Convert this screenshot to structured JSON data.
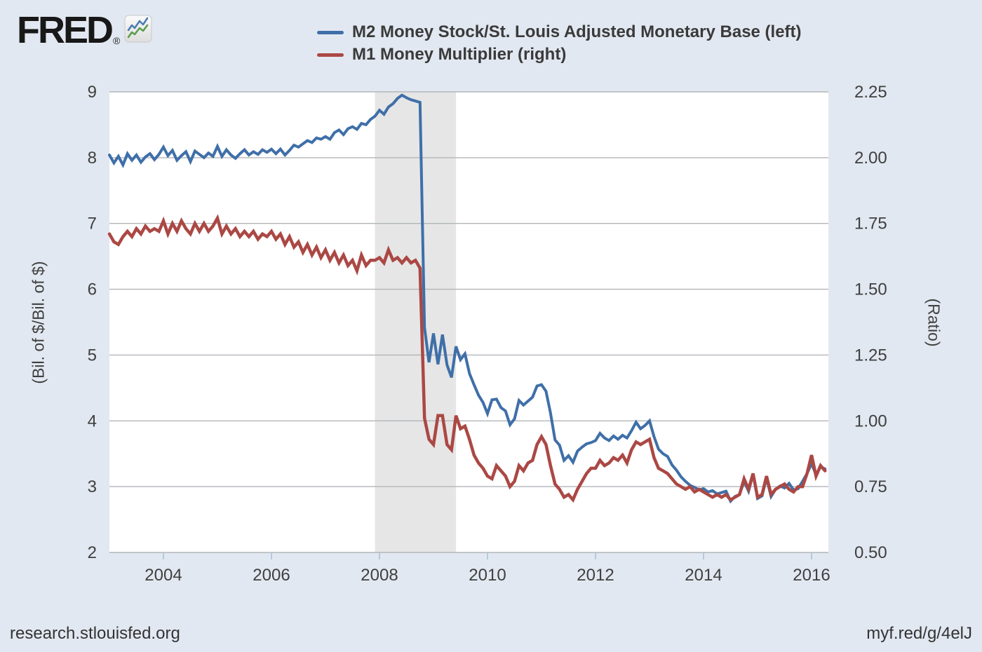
{
  "header": {
    "logo_text": "FRED",
    "logo_reg": "®"
  },
  "legend": {
    "series": [
      {
        "label": "M2 Money Stock/St. Louis Adjusted Monetary Base (left)",
        "color": "#3f6fa8"
      },
      {
        "label": "M1 Money Multiplier (right)",
        "color": "#ab4844"
      }
    ]
  },
  "footer": {
    "left": "research.stlouisfed.org",
    "right": "myf.red/g/4elJ"
  },
  "colors": {
    "background": "#e2e8f1",
    "plot_background": "#ffffff",
    "gridline": "#b2b5b9",
    "recession_band": "#e6e6e6",
    "tick_mark": "#b6c9dc",
    "axis_text": "#3f3f3f",
    "m2_line": "#3f6fa8",
    "m1_line": "#ab4844"
  },
  "chart_data": {
    "type": "line",
    "title": "",
    "frequency": "monthly",
    "x_start_year": 2003.0,
    "x_end_year": 2016.25,
    "x_axis": {
      "tick_years": [
        2004,
        2006,
        2008,
        2010,
        2012,
        2014,
        2016
      ]
    },
    "y_axis_left": {
      "title": "(Bil. of $/Bil. of $)",
      "range": [
        2,
        9
      ],
      "ticks": [
        9,
        8,
        7,
        6,
        5,
        4,
        3,
        2
      ]
    },
    "y_axis_right": {
      "title": "(Ratio)",
      "range": [
        0.5,
        2.25
      ],
      "ticks": [
        "2.25",
        "2.00",
        "1.75",
        "1.50",
        "1.25",
        "1.00",
        "0.75",
        "0.50"
      ]
    },
    "recession_band": {
      "label": "US recession 2007-12 to 2009-06",
      "start": "2007-12",
      "end": "2009-06",
      "start_year_frac": 2007.917,
      "end_year_frac": 2009.417,
      "color": "#e6e6e6"
    },
    "series": [
      {
        "name": "M2 Money Stock/St. Louis Adjusted Monetary Base",
        "axis": "left",
        "color": "#3f6fa8",
        "data_name": "m2-line",
        "values": [
          8.04,
          7.92,
          8.02,
          7.89,
          8.06,
          7.96,
          8.04,
          7.93,
          8.01,
          8.06,
          7.97,
          8.05,
          8.16,
          8.03,
          8.11,
          7.96,
          8.03,
          8.09,
          7.94,
          8.1,
          8.05,
          8.0,
          8.07,
          8.02,
          8.17,
          8.02,
          8.12,
          8.04,
          7.99,
          8.06,
          8.12,
          8.04,
          8.09,
          8.05,
          8.12,
          8.08,
          8.13,
          8.06,
          8.13,
          8.04,
          8.11,
          8.19,
          8.16,
          8.21,
          8.26,
          8.23,
          8.3,
          8.28,
          8.32,
          8.28,
          8.38,
          8.42,
          8.35,
          8.44,
          8.47,
          8.43,
          8.52,
          8.5,
          8.58,
          8.63,
          8.72,
          8.66,
          8.77,
          8.82,
          8.9,
          8.95,
          8.91,
          8.88,
          8.86,
          8.84,
          5.42,
          4.89,
          5.33,
          4.86,
          5.31,
          4.85,
          4.66,
          5.13,
          4.93,
          5.02,
          4.72,
          4.55,
          4.39,
          4.28,
          4.11,
          4.32,
          4.33,
          4.2,
          4.15,
          3.94,
          4.03,
          4.31,
          4.24,
          4.3,
          4.36,
          4.53,
          4.55,
          4.45,
          4.12,
          3.71,
          3.63,
          3.4,
          3.47,
          3.37,
          3.54,
          3.6,
          3.65,
          3.67,
          3.7,
          3.81,
          3.74,
          3.7,
          3.77,
          3.72,
          3.78,
          3.74,
          3.85,
          3.98,
          3.88,
          3.93,
          4.0,
          3.76,
          3.57,
          3.5,
          3.46,
          3.33,
          3.25,
          3.15,
          3.08,
          3.02,
          2.99,
          2.95,
          2.97,
          2.92,
          2.94,
          2.89,
          2.91,
          2.93,
          2.78,
          2.85,
          2.88,
          3.08,
          2.93,
          3.19,
          2.82,
          2.86,
          3.13,
          2.85,
          2.96,
          3.01,
          2.98,
          3.05,
          2.95,
          2.97,
          3.08,
          3.2,
          3.35,
          3.18,
          3.3,
          3.27
        ]
      },
      {
        "name": "M1 Money Multiplier",
        "axis": "right",
        "color": "#ab4844",
        "data_name": "m1-line",
        "values": [
          1.71,
          1.68,
          1.67,
          1.7,
          1.72,
          1.7,
          1.73,
          1.71,
          1.74,
          1.72,
          1.73,
          1.72,
          1.76,
          1.71,
          1.75,
          1.72,
          1.76,
          1.73,
          1.71,
          1.75,
          1.72,
          1.75,
          1.72,
          1.74,
          1.77,
          1.71,
          1.74,
          1.71,
          1.73,
          1.7,
          1.72,
          1.7,
          1.72,
          1.69,
          1.71,
          1.7,
          1.72,
          1.69,
          1.71,
          1.67,
          1.7,
          1.66,
          1.68,
          1.64,
          1.67,
          1.63,
          1.66,
          1.62,
          1.65,
          1.61,
          1.64,
          1.6,
          1.63,
          1.59,
          1.61,
          1.57,
          1.63,
          1.59,
          1.61,
          1.61,
          1.62,
          1.6,
          1.65,
          1.61,
          1.62,
          1.6,
          1.62,
          1.6,
          1.61,
          1.58,
          1.01,
          0.93,
          0.91,
          1.02,
          1.02,
          0.91,
          0.89,
          1.02,
          0.97,
          0.98,
          0.93,
          0.87,
          0.84,
          0.82,
          0.79,
          0.78,
          0.83,
          0.81,
          0.79,
          0.75,
          0.77,
          0.83,
          0.81,
          0.84,
          0.85,
          0.91,
          0.94,
          0.91,
          0.83,
          0.76,
          0.74,
          0.71,
          0.72,
          0.7,
          0.74,
          0.77,
          0.8,
          0.82,
          0.82,
          0.85,
          0.83,
          0.84,
          0.86,
          0.85,
          0.87,
          0.84,
          0.89,
          0.92,
          0.91,
          0.92,
          0.93,
          0.86,
          0.82,
          0.81,
          0.8,
          0.78,
          0.76,
          0.75,
          0.74,
          0.75,
          0.73,
          0.74,
          0.73,
          0.72,
          0.71,
          0.72,
          0.71,
          0.72,
          0.7,
          0.71,
          0.72,
          0.78,
          0.74,
          0.8,
          0.71,
          0.72,
          0.79,
          0.72,
          0.74,
          0.75,
          0.76,
          0.74,
          0.73,
          0.75,
          0.75,
          0.8,
          0.87,
          0.79,
          0.83,
          0.81
        ]
      }
    ]
  }
}
